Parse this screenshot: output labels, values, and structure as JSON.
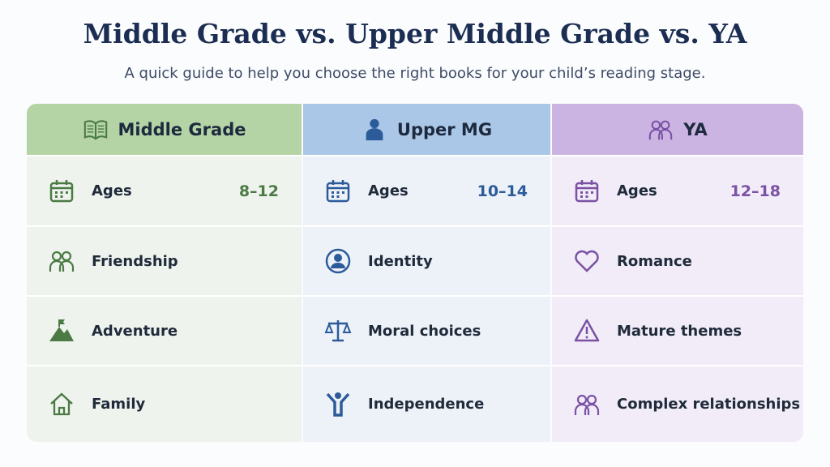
{
  "header": {
    "title": "Middle Grade vs. Upper Middle Grade vs. YA",
    "subtitle": "A quick guide to help you choose the right books for your child’s reading stage."
  },
  "columns": [
    {
      "title": "Middle Grade",
      "rows": [
        {
          "label": "Ages",
          "value": "8–12"
        },
        {
          "label": "Friendship"
        },
        {
          "label": "Adventure"
        },
        {
          "label": "Family"
        }
      ]
    },
    {
      "title": "Upper MG",
      "rows": [
        {
          "label": "Ages",
          "value": "10–14"
        },
        {
          "label": "Identity"
        },
        {
          "label": "Moral choices"
        },
        {
          "label": "Independence"
        }
      ]
    },
    {
      "title": "YA",
      "rows": [
        {
          "label": "Ages",
          "value": "12–18"
        },
        {
          "label": "Romance"
        },
        {
          "label": "Mature themes"
        },
        {
          "label": "Complex relationships"
        }
      ]
    }
  ]
}
